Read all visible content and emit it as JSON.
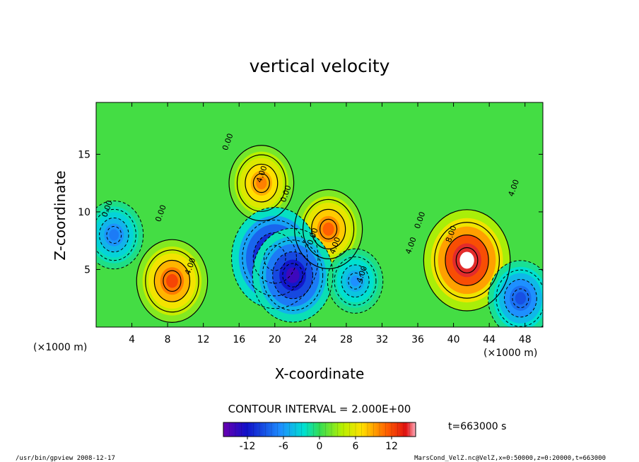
{
  "chart_data": {
    "type": "heatmap",
    "title": "vertical velocity",
    "xlabel": "X-coordinate",
    "ylabel": "Z-coordinate",
    "x_unit_left": "(×1000 m)",
    "x_unit_right": "(×1000 m)",
    "xlim": [
      0,
      50
    ],
    "ylim": [
      0,
      19.5
    ],
    "x_ticks": [
      4,
      8,
      12,
      16,
      20,
      24,
      28,
      32,
      36,
      40,
      44,
      48
    ],
    "y_ticks": [
      5,
      10,
      15
    ],
    "contour_interval_text": "CONTOUR INTERVAL = 2.000E+00",
    "time_text": "t=663000 s",
    "contour_labels": [
      "0.00",
      "0.00",
      "4.00",
      "4.00",
      "4.00",
      "0.00",
      "4.00",
      "4.00",
      "8.00",
      "0.00",
      "0.00",
      "4.00",
      "0.00"
    ],
    "colorbar": {
      "range": [
        -16,
        16
      ],
      "ticks": [
        -12,
        -6,
        0,
        6,
        12
      ]
    },
    "features": [
      {
        "x": 8.5,
        "z": 4.0,
        "value": 11
      },
      {
        "x": 41.5,
        "z": 5.8,
        "value": 16
      },
      {
        "x": 26.0,
        "z": 8.5,
        "value": 10
      },
      {
        "x": 18.5,
        "z": 12.5,
        "value": 9
      },
      {
        "x": 20.0,
        "z": 6.0,
        "value": -16
      },
      {
        "x": 22.0,
        "z": 4.5,
        "value": -14
      },
      {
        "x": 47.5,
        "z": 2.5,
        "value": -9
      },
      {
        "x": 2.0,
        "z": 8.0,
        "value": -7
      },
      {
        "x": 29.0,
        "z": 4.0,
        "value": -6
      }
    ]
  },
  "footer": {
    "left": "/usr/bin/gpview  2008-12-17",
    "right": "MarsCond_VelZ.nc@VelZ,x=0:50000,z=0:20000,t=663000"
  }
}
